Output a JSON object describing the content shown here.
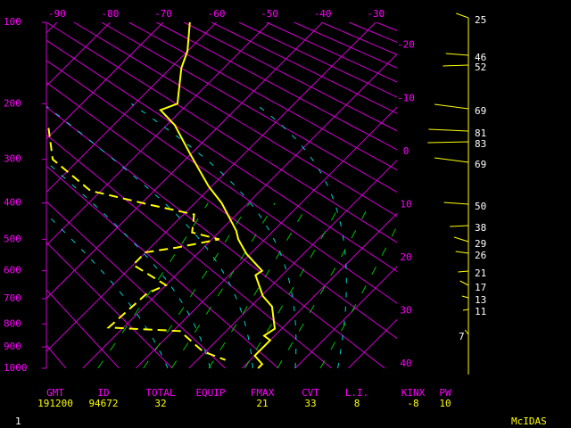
{
  "chart_data": {
    "type": "skewt",
    "xlim": [
      -92,
      -26
    ],
    "xticks": [
      -90,
      -80,
      -70,
      -60,
      -50,
      -40,
      -30,
      -20,
      -10,
      0,
      10,
      20,
      30,
      40
    ],
    "ylim": [
      100,
      1000
    ],
    "yticks": [
      100,
      200,
      300,
      400,
      500,
      600,
      700,
      800,
      900,
      1000
    ],
    "grid_color": "#d000d0",
    "series": [
      {
        "color": "#ffff00",
        "style": "solid",
        "pressure": [
          100,
          130,
          150,
          200,
          210,
          235,
          290,
          360,
          400,
          475,
          500,
          545,
          600,
          615,
          690,
          730,
          820,
          850,
          870,
          940,
          980,
          1000
        ],
        "values": [
          -65,
          -60,
          -58,
          -52,
          -54,
          -48.5,
          -40,
          -30.5,
          -25,
          -17,
          -15,
          -10.7,
          -4.6,
          -5,
          0.3,
          4,
          8.7,
          8,
          10,
          10,
          13,
          13
        ]
      },
      {
        "color": "#ffff00",
        "style": "dashed",
        "pressure": [
          240,
          300,
          370,
          405,
          430,
          480,
          500,
          525,
          540,
          580,
          650,
          680,
          815,
          830,
          920,
          960
        ],
        "values": [
          -71.7,
          -65,
          -52,
          -38,
          -28,
          -25,
          -18.6,
          -25,
          -30,
          -30,
          -20,
          -22,
          -22.8,
          -8.7,
          -0.6,
          5.3
        ]
      }
    ],
    "wind_color": "#ffff00",
    "wind_speeds": [
      25,
      46,
      52,
      69,
      81,
      83,
      69,
      50,
      38,
      29,
      26,
      21,
      17,
      13,
      11,
      7
    ]
  },
  "indices": {
    "columns": [
      {
        "label": "GMT",
        "value": "191200"
      },
      {
        "label": "ID",
        "value": "94672"
      },
      {
        "label": "TOTAL",
        "value": 32
      },
      {
        "label": "EQUIP"
      },
      {
        "label": "FMAX",
        "value": 21
      },
      {
        "label": "CVT",
        "value": 33
      },
      {
        "label": "L.I.",
        "value": 8
      },
      {
        "label": "KINX",
        "value": -8
      },
      {
        "label": "PW",
        "value": 10
      }
    ]
  },
  "footer": {
    "page": "1",
    "brand": "McIDAS"
  }
}
